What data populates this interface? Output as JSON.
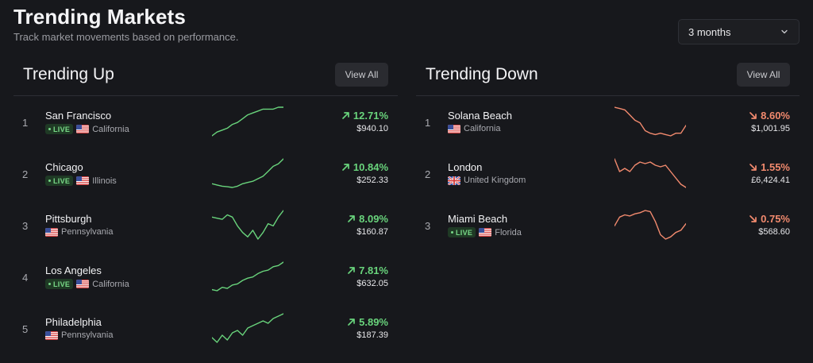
{
  "header": {
    "title": "Trending Markets",
    "subtitle": "Track market movements based on performance."
  },
  "range_select": {
    "value": "3 months"
  },
  "colors": {
    "up": "#69d47c",
    "down": "#f28a6e",
    "live_bg": "#1f3a25"
  },
  "trending_up": {
    "title": "Trending Up",
    "view_all": "View All",
    "items": [
      {
        "rank": "1",
        "city": "San Francisco",
        "live": true,
        "live_label": "LIVE",
        "flag": "us-flag-icon",
        "region": "California",
        "change": "12.71%",
        "price": "$940.10",
        "spark": [
          2,
          4,
          5,
          6,
          8,
          9,
          11,
          13,
          14,
          15,
          16,
          16,
          16,
          17,
          17
        ]
      },
      {
        "rank": "2",
        "city": "Chicago",
        "live": true,
        "live_label": "LIVE",
        "flag": "us-flag-icon",
        "region": "Illinois",
        "change": "10.84%",
        "price": "$252.33",
        "spark": [
          5,
          4.5,
          4,
          3.8,
          3.5,
          4,
          5,
          5.5,
          6,
          7,
          8,
          10,
          12,
          13,
          15
        ]
      },
      {
        "rank": "3",
        "city": "Pittsburgh",
        "live": false,
        "live_label": "",
        "flag": "us-flag-icon",
        "region": "Pennsylvania",
        "change": "8.09%",
        "price": "$160.87",
        "spark": [
          12,
          11.5,
          11,
          13,
          12,
          8,
          5,
          3,
          6,
          2,
          5,
          9,
          8,
          12,
          15
        ]
      },
      {
        "rank": "4",
        "city": "Los Angeles",
        "live": true,
        "live_label": "LIVE",
        "flag": "us-flag-icon",
        "region": "California",
        "change": "7.81%",
        "price": "$632.05",
        "spark": [
          4,
          3.5,
          5,
          4.5,
          6,
          6.5,
          8,
          9,
          9.5,
          11,
          12,
          12.5,
          14,
          14.5,
          16
        ]
      },
      {
        "rank": "5",
        "city": "Philadelphia",
        "live": false,
        "live_label": "",
        "flag": "us-flag-icon",
        "region": "Pennsylvania",
        "change": "5.89%",
        "price": "$187.39",
        "spark": [
          5,
          3,
          6,
          4,
          7,
          8,
          6,
          9,
          10,
          11,
          12,
          11,
          13,
          14,
          15
        ]
      }
    ]
  },
  "trending_down": {
    "title": "Trending Down",
    "view_all": "View All",
    "items": [
      {
        "rank": "1",
        "city": "Solana Beach",
        "live": false,
        "live_label": "",
        "flag": "us-flag-icon",
        "region": "California",
        "change": "8.60%",
        "price": "$1,001.95",
        "spark": [
          16,
          15.5,
          15,
          13,
          11,
          10,
          7,
          6,
          5.5,
          6,
          5.5,
          5,
          6,
          6,
          9
        ]
      },
      {
        "rank": "2",
        "city": "London",
        "live": false,
        "live_label": "",
        "flag": "uk-flag-icon",
        "region": "United Kingdom",
        "change": "1.55%",
        "price": "£6,424.41",
        "spark": [
          14,
          10,
          11,
          10,
          12,
          13,
          12.5,
          13,
          12,
          11.5,
          12,
          10,
          8,
          6,
          5
        ]
      },
      {
        "rank": "3",
        "city": "Miami Beach",
        "live": true,
        "live_label": "LIVE",
        "flag": "us-flag-icon",
        "region": "Florida",
        "change": "0.75%",
        "price": "$568.60",
        "spark": [
          8,
          12,
          13,
          12.5,
          13.5,
          14,
          15,
          14.5,
          10,
          4,
          2,
          3,
          5,
          6,
          9
        ]
      }
    ]
  }
}
